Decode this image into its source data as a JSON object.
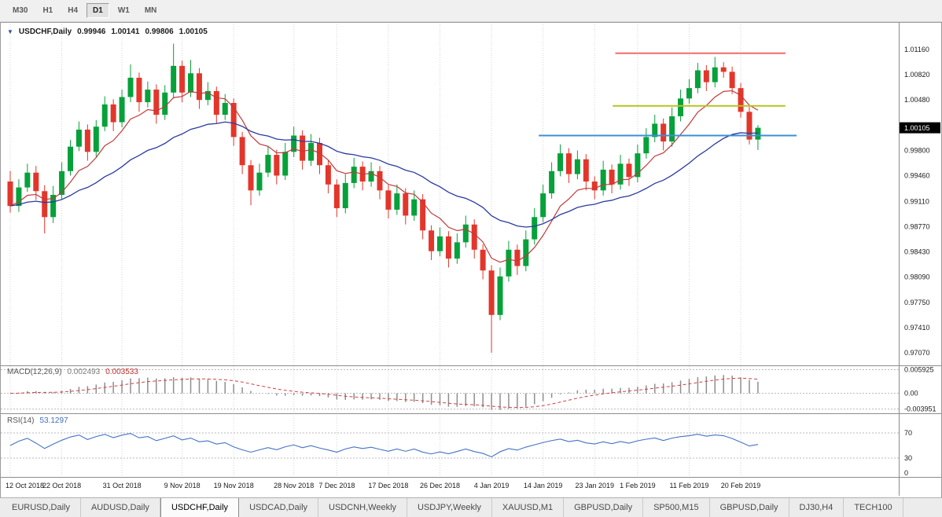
{
  "toolbar": {
    "timeframes": [
      {
        "label": "M30",
        "active": false
      },
      {
        "label": "H1",
        "active": false
      },
      {
        "label": "H4",
        "active": false
      },
      {
        "label": "D1",
        "active": true
      },
      {
        "label": "W1",
        "active": false
      },
      {
        "label": "MN",
        "active": false
      }
    ]
  },
  "header": {
    "symbol_period": "USDCHF,Daily"
  },
  "tabs": [
    {
      "label": "EURUSD,Daily",
      "active": false
    },
    {
      "label": "AUDUSD,Daily",
      "active": false
    },
    {
      "label": "USDCHF,Daily",
      "active": true
    },
    {
      "label": "USDCAD,Daily",
      "active": false
    },
    {
      "label": "USDCNH,Weekly",
      "active": false
    },
    {
      "label": "USDJPY,Weekly",
      "active": false
    },
    {
      "label": "XAUUSD,M1",
      "active": false
    },
    {
      "label": "GBPUSD,Daily",
      "active": false
    },
    {
      "label": "SP500,M15",
      "active": false
    },
    {
      "label": "GBPUSD,Daily",
      "active": false
    },
    {
      "label": "DJ30,H4",
      "active": false
    },
    {
      "label": "TECH100",
      "active": false
    }
  ],
  "chart_data": {
    "type": "candlestick",
    "symbol": "USDCHF",
    "period": "Daily",
    "quote": {
      "open": "0.99946",
      "high": "1.00141",
      "low": "0.99806",
      "close": "1.00105"
    },
    "current_price": "1.00105",
    "price_axis_ticks": [
      "1.01160",
      "1.00820",
      "1.00480",
      "0.99800",
      "0.99460",
      "0.99110",
      "0.98770",
      "0.98430",
      "0.98090",
      "0.97750",
      "0.97410",
      "0.97070"
    ],
    "date_labels": [
      "12 Oct 2018",
      "22 Oct 2018",
      "31 Oct 2018",
      "9 Nov 2018",
      "19 Nov 2018",
      "28 Nov 2018",
      "7 Dec 2018",
      "17 Dec 2018",
      "26 Dec 2018",
      "4 Jan 2019",
      "14 Jan 2019",
      "23 Jan 2019",
      "1 Feb 2019",
      "11 Feb 2019",
      "20 Feb 2019"
    ],
    "date_tick_indices": [
      0,
      6,
      13,
      20,
      26,
      33,
      38,
      44,
      50,
      56,
      62,
      68,
      73,
      79,
      85
    ],
    "candles": [
      [
        0.9938,
        0.9952,
        0.9896,
        0.9905
      ],
      [
        0.9905,
        0.9941,
        0.9897,
        0.993
      ],
      [
        0.993,
        0.9962,
        0.9924,
        0.995
      ],
      [
        0.995,
        0.9959,
        0.9913,
        0.9925
      ],
      [
        0.9925,
        0.9933,
        0.9868,
        0.989
      ],
      [
        0.989,
        0.9932,
        0.9882,
        0.992
      ],
      [
        0.992,
        0.9964,
        0.9913,
        0.9952
      ],
      [
        0.9952,
        0.9994,
        0.9946,
        0.9985
      ],
      [
        0.9985,
        1.0019,
        0.9979,
        1.0008
      ],
      [
        1.0008,
        1.0015,
        0.9966,
        0.9978
      ],
      [
        0.9978,
        1.0021,
        0.9971,
        1.0012
      ],
      [
        1.0012,
        1.0053,
        1.0006,
        1.0042
      ],
      [
        1.0042,
        1.0049,
        1.0006,
        1.0018
      ],
      [
        1.0018,
        1.0062,
        1.0011,
        1.0052
      ],
      [
        1.0052,
        1.0096,
        1.0045,
        1.0078
      ],
      [
        1.0078,
        1.0085,
        1.0032,
        1.0045
      ],
      [
        1.0045,
        1.0073,
        1.0038,
        1.0062
      ],
      [
        1.0062,
        1.0069,
        1.0016,
        1.0028
      ],
      [
        1.0028,
        1.0068,
        1.0021,
        1.0058
      ],
      [
        1.0058,
        1.0124,
        1.005,
        1.0094
      ],
      [
        1.0094,
        1.0101,
        1.0045,
        1.0058
      ],
      [
        1.0058,
        1.0102,
        1.0052,
        1.0084
      ],
      [
        1.0084,
        1.0091,
        1.0036,
        1.0048
      ],
      [
        1.0048,
        1.0072,
        1.0041,
        1.006
      ],
      [
        1.006,
        1.0066,
        1.0016,
        1.0028
      ],
      [
        1.0028,
        1.0056,
        1.0021,
        1.0044
      ],
      [
        1.0044,
        1.005,
        0.9986,
        0.9998
      ],
      [
        0.9998,
        1.0005,
        0.9948,
        0.996
      ],
      [
        0.996,
        0.9967,
        0.9906,
        0.9926
      ],
      [
        0.9926,
        0.9962,
        0.9919,
        0.995
      ],
      [
        0.995,
        0.9986,
        0.9944,
        0.9974
      ],
      [
        0.9974,
        0.9981,
        0.9934,
        0.9946
      ],
      [
        0.9946,
        0.999,
        0.994,
        0.9978
      ],
      [
        0.9978,
        1.0012,
        0.9971,
        1.0
      ],
      [
        1.0,
        1.0007,
        0.9954,
        0.9966
      ],
      [
        0.9966,
        1.0002,
        0.9959,
        0.999
      ],
      [
        0.999,
        0.9997,
        0.9948,
        0.996
      ],
      [
        0.996,
        0.9967,
        0.9922,
        0.9934
      ],
      [
        0.9934,
        0.9941,
        0.989,
        0.9902
      ],
      [
        0.9902,
        0.9948,
        0.9895,
        0.9936
      ],
      [
        0.9936,
        0.997,
        0.9929,
        0.9958
      ],
      [
        0.9958,
        0.9965,
        0.9926,
        0.9938
      ],
      [
        0.9938,
        0.9964,
        0.9931,
        0.9952
      ],
      [
        0.9952,
        0.9959,
        0.9914,
        0.9926
      ],
      [
        0.9926,
        0.9933,
        0.9888,
        0.99
      ],
      [
        0.99,
        0.9934,
        0.9893,
        0.9922
      ],
      [
        0.9922,
        0.9929,
        0.988,
        0.9892
      ],
      [
        0.9892,
        0.9926,
        0.9885,
        0.9914
      ],
      [
        0.9914,
        0.9921,
        0.986,
        0.9872
      ],
      [
        0.9872,
        0.9879,
        0.9832,
        0.9844
      ],
      [
        0.9844,
        0.9876,
        0.9837,
        0.9864
      ],
      [
        0.9864,
        0.9871,
        0.9822,
        0.9834
      ],
      [
        0.9834,
        0.9868,
        0.9827,
        0.9856
      ],
      [
        0.9856,
        0.9892,
        0.9849,
        0.988
      ],
      [
        0.988,
        0.9887,
        0.9834,
        0.9846
      ],
      [
        0.9846,
        0.9853,
        0.9806,
        0.9818
      ],
      [
        0.9818,
        0.9825,
        0.9707,
        0.9758
      ],
      [
        0.9758,
        0.9822,
        0.9751,
        0.981
      ],
      [
        0.981,
        0.9858,
        0.9803,
        0.9846
      ],
      [
        0.9846,
        0.9853,
        0.9812,
        0.9824
      ],
      [
        0.9824,
        0.9872,
        0.9817,
        0.986
      ],
      [
        0.986,
        0.9902,
        0.9853,
        0.989
      ],
      [
        0.989,
        0.9934,
        0.9883,
        0.9922
      ],
      [
        0.9922,
        0.9964,
        0.9915,
        0.9952
      ],
      [
        0.9952,
        0.9988,
        0.9945,
        0.9976
      ],
      [
        0.9976,
        0.9983,
        0.9936,
        0.9948
      ],
      [
        0.9948,
        0.998,
        0.9941,
        0.9968
      ],
      [
        0.9968,
        0.9975,
        0.9926,
        0.9938
      ],
      [
        0.9938,
        0.9945,
        0.9914,
        0.9926
      ],
      [
        0.9926,
        0.9966,
        0.9919,
        0.9954
      ],
      [
        0.9954,
        0.9961,
        0.9922,
        0.9934
      ],
      [
        0.9934,
        0.9974,
        0.9927,
        0.9962
      ],
      [
        0.9962,
        0.9969,
        0.9932,
        0.9944
      ],
      [
        0.9944,
        0.9988,
        0.9937,
        0.9976
      ],
      [
        0.9976,
        1.001,
        0.9969,
        0.9998
      ],
      [
        0.9998,
        1.0028,
        0.9991,
        1.0016
      ],
      [
        1.0016,
        1.0023,
        0.998,
        0.9992
      ],
      [
        0.9992,
        1.0038,
        0.9985,
        1.0026
      ],
      [
        1.0026,
        1.0062,
        1.0019,
        1.005
      ],
      [
        1.005,
        1.0076,
        1.0043,
        1.0064
      ],
      [
        1.0064,
        1.0098,
        1.0057,
        1.0088
      ],
      [
        1.0088,
        1.0095,
        1.006,
        1.0072
      ],
      [
        1.0072,
        1.0106,
        1.0065,
        1.0092
      ],
      [
        1.0092,
        1.0099,
        1.0078,
        1.0086
      ],
      [
        1.0086,
        1.0093,
        1.0056,
        1.0064
      ],
      [
        1.0064,
        1.0071,
        1.0024,
        1.0032
      ],
      [
        1.0032,
        1.0039,
        0.9988,
        0.99946
      ],
      [
        0.99946,
        1.00141,
        0.99806,
        1.00105
      ]
    ],
    "indicators": {
      "ma_fast": {
        "type": "ema",
        "period": 8,
        "color": "#C03A3A"
      },
      "ma_slow": {
        "type": "ema",
        "period": 25,
        "color": "#2B3A9E"
      },
      "macd": {
        "label": "MACD(12,26,9)",
        "value": "0.002493",
        "signal_value": "0.003533",
        "axis_ticks": [
          "0.005925",
          "0.00",
          "-0.003951"
        ],
        "histogram_color": "#8E8E8E",
        "signal_color": "#D04040"
      },
      "rsi": {
        "label": "RSI(14)",
        "value": "53.1297",
        "levels": [
          70,
          30
        ],
        "axis_ticks": [
          "70",
          "30",
          "0"
        ],
        "color": "#4472C4"
      }
    },
    "trend_lines": [
      {
        "name": "resistance-upper-line",
        "color": "#F26B6B",
        "price": 1.0111,
        "from_index": 70.4,
        "to_index": 90.2
      },
      {
        "name": "resistance-mid-line",
        "color": "#B7C421",
        "price": 1.004,
        "from_index": 70.1,
        "to_index": 90.2
      },
      {
        "name": "support-line",
        "color": "#3B8FD4",
        "price": 1.0,
        "from_index": 61.5,
        "to_index": 91.5
      }
    ]
  }
}
